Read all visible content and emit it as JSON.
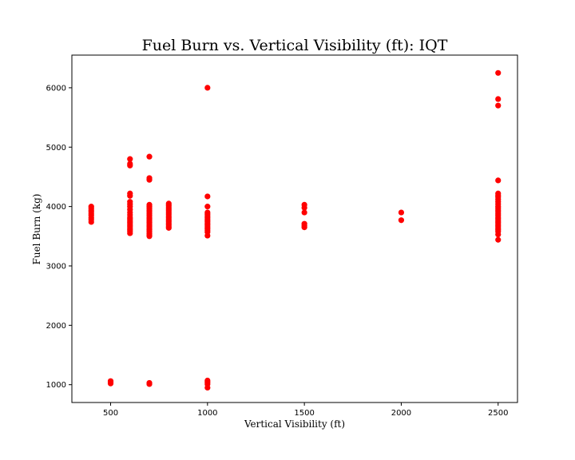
{
  "chart_data": {
    "type": "scatter",
    "title": "Fuel Burn vs. Vertical Visibility (ft): IQT",
    "xlabel": "Vertical Visibility (ft)",
    "ylabel": "Fuel Burn (kg)",
    "xlim": [
      300,
      2600
    ],
    "ylim": [
      700,
      6550
    ],
    "xticks": [
      500,
      1000,
      1500,
      2000,
      2500
    ],
    "yticks": [
      1000,
      2000,
      3000,
      4000,
      5000,
      6000
    ],
    "grid": false,
    "marker_color": "#ff0000",
    "series": [
      {
        "points": [
          [
            400,
            4000
          ],
          [
            400,
            3970
          ],
          [
            400,
            3940
          ],
          [
            400,
            3910
          ],
          [
            400,
            3880
          ],
          [
            400,
            3850
          ],
          [
            400,
            3810
          ],
          [
            400,
            3780
          ],
          [
            400,
            3740
          ],
          [
            500,
            1060
          ],
          [
            500,
            1040
          ],
          [
            500,
            1020
          ],
          [
            600,
            4800
          ],
          [
            600,
            4720
          ],
          [
            600,
            4690
          ],
          [
            600,
            4220
          ],
          [
            600,
            4180
          ],
          [
            600,
            4080
          ],
          [
            600,
            4040
          ],
          [
            600,
            4000
          ],
          [
            600,
            3950
          ],
          [
            600,
            3900
          ],
          [
            600,
            3860
          ],
          [
            600,
            3820
          ],
          [
            600,
            3790
          ],
          [
            600,
            3760
          ],
          [
            600,
            3730
          ],
          [
            600,
            3700
          ],
          [
            600,
            3670
          ],
          [
            600,
            3640
          ],
          [
            600,
            3610
          ],
          [
            600,
            3580
          ],
          [
            600,
            3550
          ],
          [
            700,
            4840
          ],
          [
            700,
            4480
          ],
          [
            700,
            4450
          ],
          [
            700,
            4030
          ],
          [
            700,
            4000
          ],
          [
            700,
            3970
          ],
          [
            700,
            3940
          ],
          [
            700,
            3910
          ],
          [
            700,
            3880
          ],
          [
            700,
            3850
          ],
          [
            700,
            3820
          ],
          [
            700,
            3790
          ],
          [
            700,
            3760
          ],
          [
            700,
            3730
          ],
          [
            700,
            3700
          ],
          [
            700,
            3670
          ],
          [
            700,
            3640
          ],
          [
            700,
            3610
          ],
          [
            700,
            3580
          ],
          [
            700,
            3550
          ],
          [
            700,
            3520
          ],
          [
            700,
            3500
          ],
          [
            700,
            1030
          ],
          [
            700,
            1010
          ],
          [
            800,
            4050
          ],
          [
            800,
            4020
          ],
          [
            800,
            3990
          ],
          [
            800,
            3960
          ],
          [
            800,
            3930
          ],
          [
            800,
            3900
          ],
          [
            800,
            3870
          ],
          [
            800,
            3840
          ],
          [
            800,
            3810
          ],
          [
            800,
            3780
          ],
          [
            800,
            3750
          ],
          [
            800,
            3720
          ],
          [
            800,
            3690
          ],
          [
            800,
            3660
          ],
          [
            800,
            3640
          ],
          [
            1000,
            6000
          ],
          [
            1000,
            4170
          ],
          [
            1000,
            4000
          ],
          [
            1000,
            3900
          ],
          [
            1000,
            3870
          ],
          [
            1000,
            3840
          ],
          [
            1000,
            3810
          ],
          [
            1000,
            3780
          ],
          [
            1000,
            3750
          ],
          [
            1000,
            3720
          ],
          [
            1000,
            3690
          ],
          [
            1000,
            3660
          ],
          [
            1000,
            3630
          ],
          [
            1000,
            3600
          ],
          [
            1000,
            3570
          ],
          [
            1000,
            3510
          ],
          [
            1000,
            1070
          ],
          [
            1000,
            1040
          ],
          [
            1000,
            1010
          ],
          [
            1000,
            950
          ],
          [
            1500,
            4030
          ],
          [
            1500,
            3980
          ],
          [
            1500,
            3900
          ],
          [
            1500,
            3710
          ],
          [
            1500,
            3680
          ],
          [
            1500,
            3650
          ],
          [
            2000,
            3900
          ],
          [
            2000,
            3770
          ],
          [
            2500,
            6250
          ],
          [
            2500,
            5810
          ],
          [
            2500,
            5700
          ],
          [
            2500,
            4440
          ],
          [
            2500,
            4220
          ],
          [
            2500,
            4190
          ],
          [
            2500,
            4160
          ],
          [
            2500,
            4120
          ],
          [
            2500,
            4080
          ],
          [
            2500,
            4040
          ],
          [
            2500,
            4000
          ],
          [
            2500,
            3970
          ],
          [
            2500,
            3940
          ],
          [
            2500,
            3910
          ],
          [
            2500,
            3880
          ],
          [
            2500,
            3850
          ],
          [
            2500,
            3820
          ],
          [
            2500,
            3790
          ],
          [
            2500,
            3760
          ],
          [
            2500,
            3730
          ],
          [
            2500,
            3700
          ],
          [
            2500,
            3670
          ],
          [
            2500,
            3640
          ],
          [
            2500,
            3610
          ],
          [
            2500,
            3580
          ],
          [
            2500,
            3530
          ],
          [
            2500,
            3440
          ]
        ]
      }
    ]
  }
}
